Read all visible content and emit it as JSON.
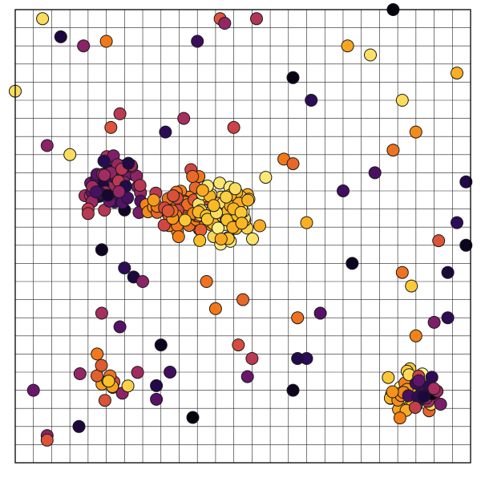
{
  "chart_data": {
    "type": "scatter",
    "title": "",
    "xlabel": "",
    "ylabel": "",
    "xlim": [
      0,
      100
    ],
    "ylim": [
      0,
      100
    ],
    "grid": true,
    "grid_divisions": 25,
    "colormap": "inferno",
    "marker_edge_color": "#1a1a1a",
    "clusters": [
      {
        "cx": 22,
        "cy": 62,
        "sx": 3.2,
        "sy": 3.4,
        "n": 60,
        "c0": 0.05,
        "c1": 0.55
      },
      {
        "cx": 37,
        "cy": 56,
        "sx": 3.8,
        "sy": 3.0,
        "n": 70,
        "c0": 0.55,
        "c1": 0.78
      },
      {
        "cx": 46,
        "cy": 56,
        "sx": 3.5,
        "sy": 3.0,
        "n": 80,
        "c0": 0.8,
        "c1": 0.98
      },
      {
        "cx": 86,
        "cy": 15,
        "sx": 2.0,
        "sy": 2.2,
        "n": 35,
        "c0": 0.6,
        "c1": 0.98
      },
      {
        "cx": 91,
        "cy": 16,
        "sx": 1.6,
        "sy": 1.8,
        "n": 25,
        "c0": 0.02,
        "c1": 0.6
      },
      {
        "cx": 22,
        "cy": 18,
        "sx": 2.5,
        "sy": 2.0,
        "n": 14,
        "c0": 0.35,
        "c1": 0.9
      }
    ],
    "points": [
      {
        "x": 6,
        "y": 98,
        "c": 0.92
      },
      {
        "x": 10,
        "y": 94,
        "c": 0.1
      },
      {
        "x": 15,
        "y": 92,
        "c": 0.38
      },
      {
        "x": 20,
        "y": 93,
        "c": 0.7
      },
      {
        "x": 40,
        "y": 93,
        "c": 0.18
      },
      {
        "x": 45,
        "y": 98,
        "c": 0.6
      },
      {
        "x": 46,
        "y": 97,
        "c": 0.4
      },
      {
        "x": 53,
        "y": 98,
        "c": 0.48
      },
      {
        "x": 83,
        "y": 100,
        "c": 0.02
      },
      {
        "x": 73,
        "y": 92,
        "c": 0.8
      },
      {
        "x": 78,
        "y": 90,
        "c": 0.93
      },
      {
        "x": 97,
        "y": 86,
        "c": 0.82
      },
      {
        "x": 61,
        "y": 85,
        "c": 0.03
      },
      {
        "x": 65,
        "y": 80,
        "c": 0.15
      },
      {
        "x": 85,
        "y": 80,
        "c": 0.92
      },
      {
        "x": 88,
        "y": 73,
        "c": 0.74
      },
      {
        "x": 83,
        "y": 69,
        "c": 0.68
      },
      {
        "x": 79,
        "y": 64,
        "c": 0.22
      },
      {
        "x": 72,
        "y": 60,
        "c": 0.2
      },
      {
        "x": 59,
        "y": 67,
        "c": 0.7
      },
      {
        "x": 61,
        "y": 66,
        "c": 0.65
      },
      {
        "x": 55,
        "y": 63,
        "c": 0.95
      },
      {
        "x": 64,
        "y": 53,
        "c": 0.82
      },
      {
        "x": 99,
        "y": 62,
        "c": 0.12
      },
      {
        "x": 97,
        "y": 53,
        "c": 0.15
      },
      {
        "x": 99,
        "y": 48,
        "c": 0.05
      },
      {
        "x": 93,
        "y": 49,
        "c": 0.6
      },
      {
        "x": 74,
        "y": 44,
        "c": 0.05
      },
      {
        "x": 85,
        "y": 42,
        "c": 0.68
      },
      {
        "x": 87,
        "y": 39,
        "c": 0.88
      },
      {
        "x": 95,
        "y": 42,
        "c": 0.1
      },
      {
        "x": 95,
        "y": 32,
        "c": 0.15
      },
      {
        "x": 92,
        "y": 31,
        "c": 0.35
      },
      {
        "x": 88,
        "y": 28,
        "c": 0.72
      },
      {
        "x": 67,
        "y": 33,
        "c": 0.25
      },
      {
        "x": 62,
        "y": 32,
        "c": 0.68
      },
      {
        "x": 64,
        "y": 23,
        "c": 0.15
      },
      {
        "x": 62,
        "y": 23,
        "c": 0.12
      },
      {
        "x": 49,
        "y": 26,
        "c": 0.58
      },
      {
        "x": 52,
        "y": 23,
        "c": 0.5
      },
      {
        "x": 51,
        "y": 19,
        "c": 0.3
      },
      {
        "x": 61,
        "y": 16,
        "c": 0.05
      },
      {
        "x": 39,
        "y": 10,
        "c": 0.02
      },
      {
        "x": 32,
        "y": 26,
        "c": 0.05
      },
      {
        "x": 34,
        "y": 20,
        "c": 0.2
      },
      {
        "x": 31,
        "y": 17,
        "c": 0.12
      },
      {
        "x": 31,
        "y": 14,
        "c": 0.25
      },
      {
        "x": 19,
        "y": 33,
        "c": 0.45
      },
      {
        "x": 23,
        "y": 30,
        "c": 0.25
      },
      {
        "x": 18,
        "y": 24,
        "c": 0.7
      },
      {
        "x": 4,
        "y": 16,
        "c": 0.3
      },
      {
        "x": 7,
        "y": 6,
        "c": 0.38
      },
      {
        "x": 7,
        "y": 5,
        "c": 0.6
      },
      {
        "x": 14,
        "y": 8,
        "c": 0.1
      },
      {
        "x": 0,
        "y": 82,
        "c": 0.92
      },
      {
        "x": 7,
        "y": 70,
        "c": 0.38
      },
      {
        "x": 12,
        "y": 68,
        "c": 0.92
      },
      {
        "x": 21,
        "y": 74,
        "c": 0.6
      },
      {
        "x": 23,
        "y": 77,
        "c": 0.5
      },
      {
        "x": 33,
        "y": 73,
        "c": 0.15
      },
      {
        "x": 37,
        "y": 76,
        "c": 0.45
      },
      {
        "x": 48,
        "y": 74,
        "c": 0.55
      },
      {
        "x": 16,
        "y": 56,
        "c": 0.52
      },
      {
        "x": 16,
        "y": 55,
        "c": 0.5
      },
      {
        "x": 19,
        "y": 47,
        "c": 0.05
      },
      {
        "x": 24,
        "y": 43,
        "c": 0.15
      },
      {
        "x": 26,
        "y": 41,
        "c": 0.1
      },
      {
        "x": 28,
        "y": 40,
        "c": 0.38
      },
      {
        "x": 50,
        "y": 36,
        "c": 0.65
      },
      {
        "x": 44,
        "y": 34,
        "c": 0.7
      },
      {
        "x": 42,
        "y": 40,
        "c": 0.68
      }
    ]
  }
}
